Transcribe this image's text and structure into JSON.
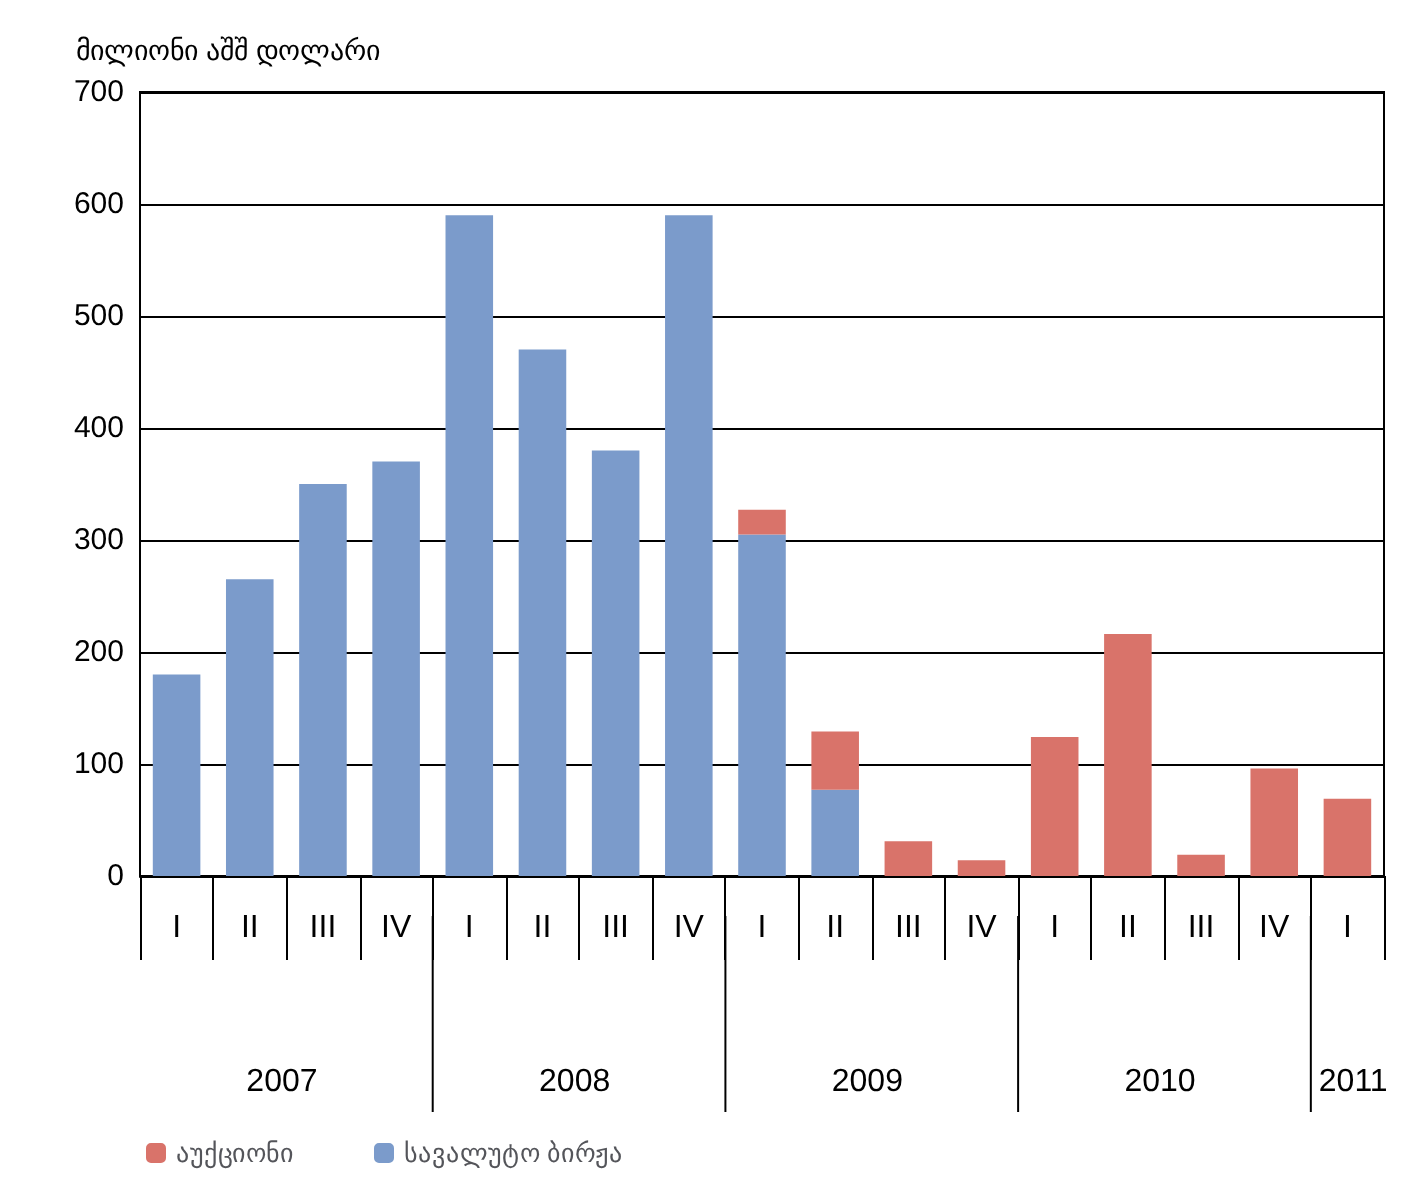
{
  "chart_data": {
    "type": "bar",
    "ylabel": "მილიონი აშშ დოლარი",
    "stacked": true,
    "categories": [
      "I",
      "II",
      "III",
      "IV",
      "I",
      "II",
      "III",
      "IV",
      "I",
      "II",
      "III",
      "IV",
      "I",
      "II",
      "III",
      "IV",
      "I"
    ],
    "annotations": [
      "2007",
      "2008",
      "2009",
      "2010",
      "2011"
    ],
    "series": [
      {
        "name": "სავალუტო ბირჟა",
        "color": "#7b9bcb",
        "values": [
          180,
          265,
          350,
          370,
          590,
          470,
          380,
          590,
          305,
          77,
          null,
          null,
          null,
          null,
          null,
          null,
          null
        ]
      },
      {
        "name": "აუქციონი",
        "color": "#d9736a",
        "values": [
          null,
          null,
          null,
          null,
          null,
          null,
          null,
          null,
          22,
          52,
          31,
          14,
          124,
          216,
          19,
          96,
          69
        ]
      }
    ],
    "ylim": [
      0,
      700
    ],
    "yticks": [
      0,
      100,
      200,
      300,
      400,
      500,
      600,
      700
    ],
    "grid": "y",
    "legend": "bottom left"
  }
}
